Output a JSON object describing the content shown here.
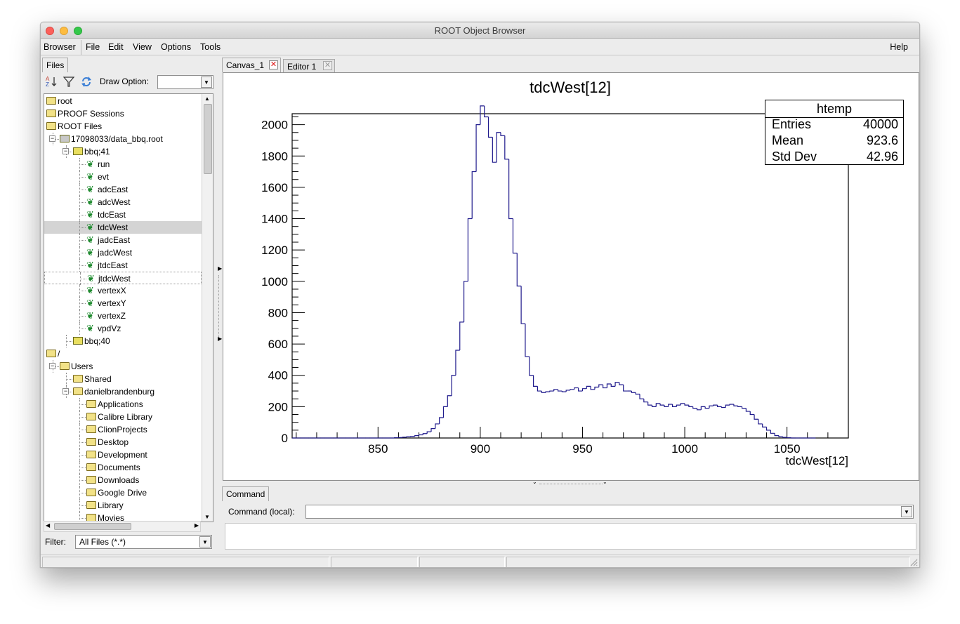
{
  "window": {
    "title": "ROOT Object Browser"
  },
  "menubar": {
    "items": [
      {
        "label": "Browser"
      },
      {
        "label": "File"
      },
      {
        "label": "Edit"
      },
      {
        "label": "View"
      },
      {
        "label": "Options"
      },
      {
        "label": "Tools"
      }
    ],
    "help": "Help"
  },
  "left_panel": {
    "tab": "Files",
    "draw_option_label": "Draw Option:",
    "draw_option_value": "",
    "tree": [
      {
        "label": "root",
        "icon": "folder-icon"
      },
      {
        "label": "PROOF Sessions",
        "icon": "folder-icon"
      },
      {
        "label": "ROOT Files",
        "icon": "folder-open-icon"
      },
      {
        "label": "17098033/data_bbq.root",
        "icon": "root-file-icon"
      },
      {
        "label": "bbq;41",
        "icon": "tree-icon"
      },
      {
        "label": "run",
        "icon": "leaf-icon"
      },
      {
        "label": "evt",
        "icon": "leaf-icon"
      },
      {
        "label": "adcEast",
        "icon": "leaf-icon"
      },
      {
        "label": "adcWest",
        "icon": "leaf-icon"
      },
      {
        "label": "tdcEast",
        "icon": "leaf-icon"
      },
      {
        "label": "tdcWest",
        "icon": "leaf-icon",
        "selected": true
      },
      {
        "label": "jadcEast",
        "icon": "leaf-icon"
      },
      {
        "label": "jadcWest",
        "icon": "leaf-icon"
      },
      {
        "label": "jtdcEast",
        "icon": "leaf-icon"
      },
      {
        "label": "jtdcWest",
        "icon": "leaf-icon",
        "focused": true
      },
      {
        "label": "vertexX",
        "icon": "leaf-icon"
      },
      {
        "label": "vertexY",
        "icon": "leaf-icon"
      },
      {
        "label": "vertexZ",
        "icon": "leaf-icon"
      },
      {
        "label": "vpdVz",
        "icon": "leaf-icon"
      },
      {
        "label": "bbq;40",
        "icon": "tree-icon"
      },
      {
        "label": "/",
        "icon": "folder-open-icon"
      },
      {
        "label": "Users",
        "icon": "folder-open-icon"
      },
      {
        "label": "Shared",
        "icon": "folder-icon"
      },
      {
        "label": "danielbrandenburg",
        "icon": "folder-open-icon"
      },
      {
        "label": "Applications",
        "icon": "folder-icon"
      },
      {
        "label": "Calibre Library",
        "icon": "folder-icon"
      },
      {
        "label": "ClionProjects",
        "icon": "folder-icon"
      },
      {
        "label": "Desktop",
        "icon": "folder-icon"
      },
      {
        "label": "Development",
        "icon": "folder-icon"
      },
      {
        "label": "Documents",
        "icon": "folder-icon"
      },
      {
        "label": "Downloads",
        "icon": "folder-icon"
      },
      {
        "label": "Google Drive",
        "icon": "folder-icon"
      },
      {
        "label": "Library",
        "icon": "folder-icon"
      },
      {
        "label": "Movies",
        "icon": "folder-icon"
      }
    ],
    "filter_label": "Filter:",
    "filter_value": "All Files (*.*)"
  },
  "tabs": [
    {
      "label": "Canvas_1",
      "active": true
    },
    {
      "label": "Editor 1",
      "active": false
    }
  ],
  "stats": {
    "title": "htemp",
    "rows": [
      {
        "label": "Entries",
        "value": "40000"
      },
      {
        "label": "Mean",
        "value": "923.6"
      },
      {
        "label": "Std Dev",
        "value": "42.96"
      }
    ]
  },
  "chart_data": {
    "type": "histogram",
    "title": "tdcWest[12]",
    "xlabel": "tdcWest[12]",
    "ylabel": "",
    "xlim": [
      808,
      1080
    ],
    "ylim": [
      0,
      2070
    ],
    "xticks": [
      "850",
      "900",
      "950",
      "1000",
      "1050"
    ],
    "yticks": [
      "0",
      "200",
      "400",
      "600",
      "800",
      "1000",
      "1200",
      "1400",
      "1600",
      "1800",
      "2000"
    ],
    "bin_width": 2,
    "bin_start": 808,
    "values": [
      0,
      0,
      0,
      0,
      0,
      0,
      0,
      0,
      0,
      0,
      0,
      0,
      0,
      0,
      0,
      0,
      0,
      0,
      0,
      0,
      0,
      0,
      0,
      0,
      0,
      2,
      3,
      5,
      8,
      10,
      15,
      20,
      28,
      40,
      60,
      90,
      130,
      200,
      270,
      400,
      560,
      740,
      1000,
      1400,
      1700,
      2000,
      2120,
      2050,
      1920,
      1760,
      1950,
      1930,
      1780,
      1400,
      1180,
      970,
      730,
      520,
      400,
      330,
      300,
      290,
      295,
      300,
      310,
      300,
      295,
      305,
      310,
      320,
      300,
      315,
      330,
      310,
      325,
      340,
      320,
      345,
      330,
      355,
      340,
      300,
      300,
      290,
      280,
      250,
      230,
      210,
      200,
      220,
      210,
      200,
      215,
      200,
      210,
      220,
      210,
      200,
      190,
      180,
      200,
      190,
      205,
      210,
      200,
      195,
      210,
      215,
      205,
      200,
      190,
      170,
      150,
      120,
      90,
      70,
      50,
      30,
      15,
      8,
      4,
      2,
      0,
      0,
      0,
      0,
      0,
      0
    ]
  },
  "command": {
    "tab": "Command",
    "label": "Command (local):",
    "value": ""
  }
}
